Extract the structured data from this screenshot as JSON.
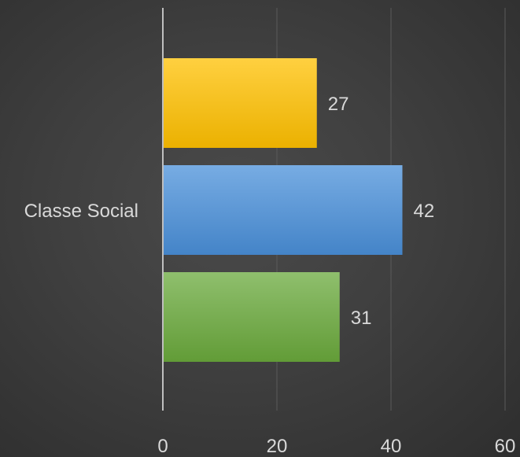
{
  "chart_data": {
    "type": "bar",
    "orientation": "horizontal",
    "categories": [
      "Classe Social"
    ],
    "series": [
      {
        "values": [
          27
        ],
        "color": "#ffc000"
      },
      {
        "values": [
          42
        ],
        "color": "#4a90d9"
      },
      {
        "values": [
          31
        ],
        "color": "#6aaa3c"
      }
    ],
    "xlim": [
      0,
      60
    ],
    "xticks": [
      0,
      20,
      40,
      60
    ],
    "title": "",
    "xlabel": "",
    "ylabel": "",
    "grid": true,
    "legend": "none"
  }
}
